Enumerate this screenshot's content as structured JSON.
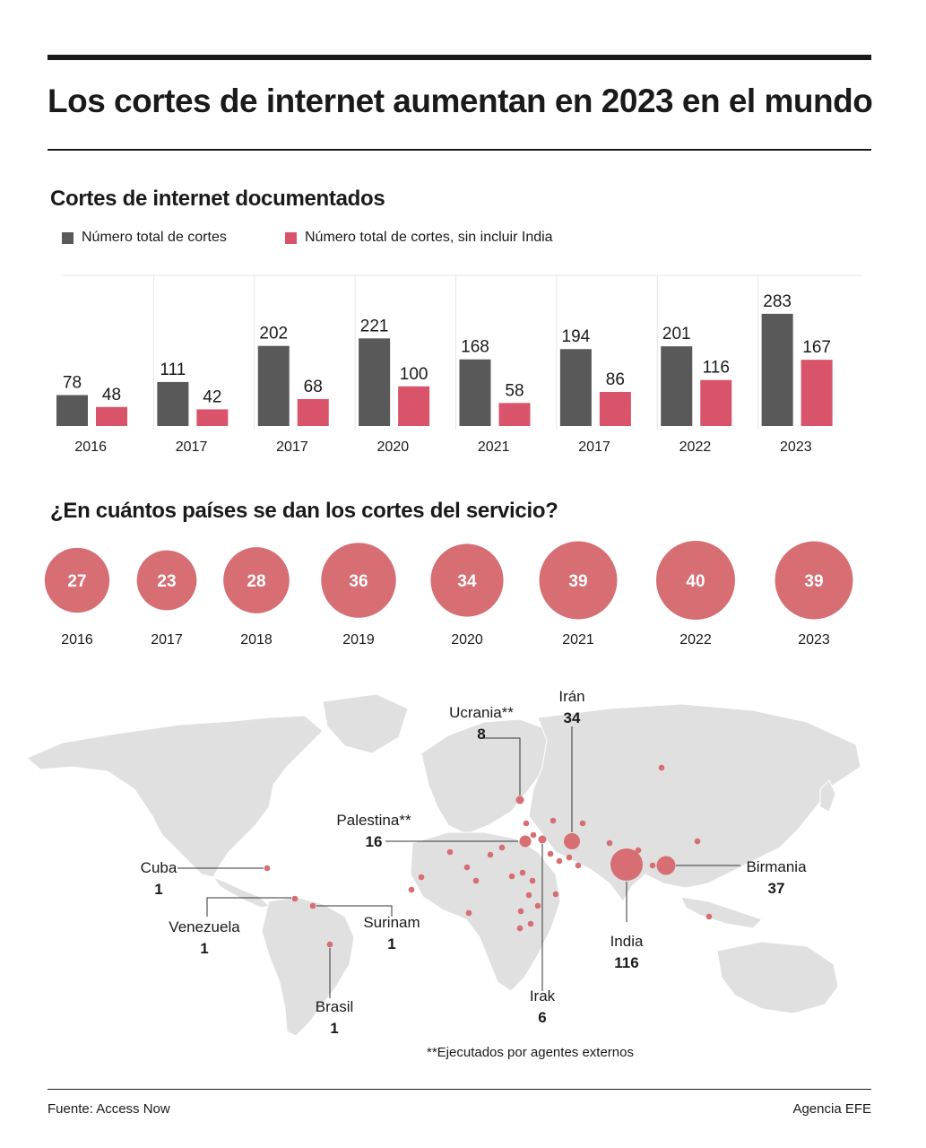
{
  "title": "Los cortes de internet aumentan en 2023 en el mundo",
  "colors": {
    "dark": "#595959",
    "accent": "#d9546a",
    "bubble": "#d66e73",
    "land": "#e0e0e0",
    "grid": "#e6e6e6"
  },
  "chart_data": [
    {
      "type": "bar",
      "title": "Cortes de internet documentados",
      "categories": [
        "2016",
        "2017",
        "2017",
        "2020",
        "2021",
        "2017",
        "2022",
        "2023"
      ],
      "series": [
        {
          "name": "Número total de cortes",
          "values": [
            78,
            111,
            202,
            221,
            168,
            194,
            201,
            283
          ]
        },
        {
          "name": "Número total de cortes, sin incluir India",
          "values": [
            48,
            42,
            68,
            100,
            58,
            86,
            116,
            167
          ]
        }
      ],
      "ylim": [
        0,
        380
      ],
      "grid": false,
      "legend": "top-left"
    },
    {
      "type": "scatter",
      "title": "¿En cuántos países se dan los cortes del servicio?",
      "categories": [
        "2016",
        "2017",
        "2018",
        "2019",
        "2020",
        "2021",
        "2022",
        "2023"
      ],
      "values": [
        27,
        23,
        28,
        36,
        34,
        39,
        40,
        39
      ]
    }
  ],
  "map": {
    "labels": [
      {
        "id": "ucrania",
        "name": "Ucrania**",
        "value": "8"
      },
      {
        "id": "iran",
        "name": "Irán",
        "value": "34"
      },
      {
        "id": "palestina",
        "name": "Palestina**",
        "value": "16"
      },
      {
        "id": "cuba",
        "name": "Cuba",
        "value": "1"
      },
      {
        "id": "venezuela",
        "name": "Venezuela",
        "value": "1"
      },
      {
        "id": "surinam",
        "name": "Surinam",
        "value": "1"
      },
      {
        "id": "brasil",
        "name": "Brasil",
        "value": "1"
      },
      {
        "id": "india",
        "name": "India",
        "value": "116"
      },
      {
        "id": "birmania",
        "name": "Birmania",
        "value": "37"
      },
      {
        "id": "irak",
        "name": "Irak",
        "value": "6"
      }
    ],
    "note": "**Ejecutados por agentes externos"
  },
  "footer": {
    "source": "Fuente: Access Now",
    "agency": "Agencia EFE"
  }
}
